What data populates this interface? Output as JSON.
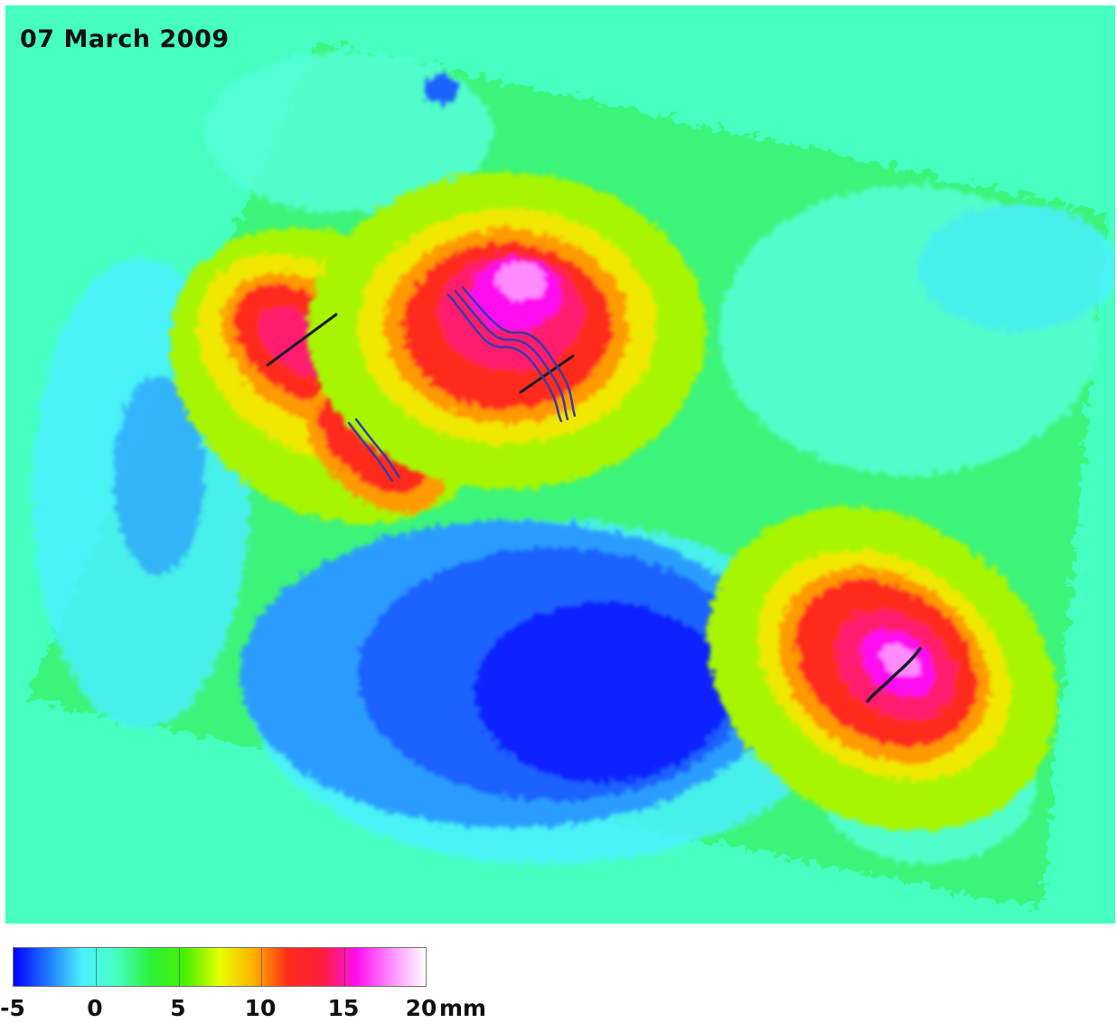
{
  "map": {
    "date_label": "07 March 2009",
    "background_color": "#44ffbf",
    "features": [
      {
        "name": "north-west-uplift-lobe-a",
        "peak_mm": 15
      },
      {
        "name": "north-west-uplift-lobe-b",
        "peak_mm": 12
      },
      {
        "name": "north-central-uplift",
        "peak_mm": 20
      },
      {
        "name": "south-east-uplift",
        "peak_mm": 20
      },
      {
        "name": "central-south-subsidence",
        "min_mm": -5
      }
    ]
  },
  "colorbar": {
    "min": -5,
    "max": 20,
    "unit": "mm",
    "ticks": [
      "-5",
      "0",
      "5",
      "10",
      "15",
      "20"
    ],
    "colors": [
      "#0000ff",
      "#1e78ff",
      "#4cf0ff",
      "#44ffbf",
      "#2cf03a",
      "#48f000",
      "#e6ff00",
      "#ffb000",
      "#ff2a1a",
      "#ff1e3c",
      "#ff10f0",
      "#ff8cff",
      "#ffffff"
    ]
  }
}
